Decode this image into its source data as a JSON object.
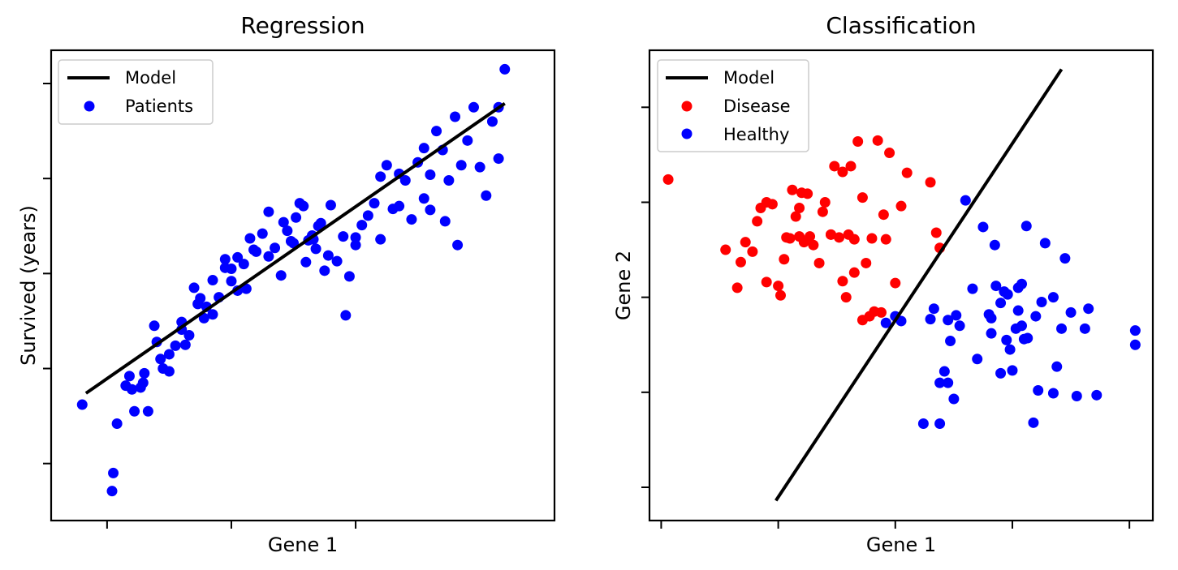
{
  "chart_data": [
    {
      "type": "scatter",
      "title": "Regression",
      "xlabel": "Gene 1",
      "ylabel": "Survived (years)",
      "xlim": [
        -0.45,
        3.6
      ],
      "ylim": [
        -1.6,
        3.35
      ],
      "xticks": [
        0,
        1,
        2
      ],
      "yticks": [
        -1,
        0,
        1,
        2,
        3
      ],
      "tick_labels_shown": false,
      "grid": false,
      "legend": "upper-left",
      "series": [
        {
          "name": "Model",
          "kind": "line",
          "color": "#000000",
          "x": [
            -0.17,
            3.2
          ],
          "y": [
            -0.26,
            2.79
          ]
        },
        {
          "name": "Patients",
          "kind": "scatter",
          "color": "#0000ff",
          "x": [
            -0.2,
            0.04,
            0.08,
            0.05,
            0.18,
            0.22,
            0.27,
            0.29,
            0.33,
            0.38,
            0.43,
            0.45,
            0.5,
            0.55,
            0.6,
            0.63,
            0.7,
            0.73,
            0.78,
            0.8,
            0.85,
            0.9,
            0.95,
            1.0,
            1.05,
            1.1,
            1.12,
            1.18,
            1.2,
            1.25,
            1.3,
            1.35,
            1.4,
            1.45,
            1.5,
            1.52,
            1.55,
            1.6,
            1.62,
            1.65,
            1.68,
            1.7,
            1.72,
            1.75,
            1.78,
            1.8,
            1.85,
            1.9,
            1.95,
            2.0,
            2.05,
            2.1,
            2.15,
            2.2,
            2.25,
            2.3,
            2.35,
            2.4,
            2.45,
            2.5,
            2.55,
            2.6,
            2.65,
            2.7,
            2.75,
            2.8,
            2.85,
            2.9,
            2.95,
            3.0,
            3.05,
            3.1,
            3.15,
            3.2,
            1.0,
            0.95,
            1.05,
            1.15,
            1.3,
            1.42,
            1.48,
            1.58,
            1.66,
            0.6,
            0.75,
            0.85,
            0.4,
            0.3,
            0.2,
            0.15,
            0.5,
            0.66,
            1.92,
            2.0,
            2.2,
            2.35,
            2.55,
            2.6,
            2.72,
            2.82,
            3.15
          ],
          "y": [
            -0.38,
            -1.29,
            -0.58,
            -1.1,
            -0.08,
            -0.45,
            -0.2,
            -0.15,
            -0.45,
            0.45,
            0.1,
            0.0,
            -0.03,
            0.24,
            0.41,
            0.25,
            0.85,
            0.68,
            0.53,
            0.65,
            0.93,
            0.75,
            1.15,
            1.05,
            0.82,
            1.1,
            0.84,
            1.25,
            1.23,
            1.42,
            1.18,
            1.27,
            0.98,
            1.45,
            1.32,
            1.59,
            1.74,
            1.12,
            1.35,
            1.4,
            1.26,
            1.5,
            1.53,
            1.03,
            1.19,
            1.72,
            1.13,
            1.39,
            0.97,
            1.3,
            1.51,
            1.61,
            1.74,
            2.02,
            2.14,
            1.68,
            2.05,
            1.98,
            1.57,
            2.17,
            2.32,
            1.67,
            2.5,
            2.3,
            1.98,
            2.65,
            2.14,
            2.4,
            2.75,
            2.12,
            1.82,
            2.6,
            2.75,
            3.15,
            0.92,
            1.06,
            1.17,
            1.37,
            1.65,
            1.54,
            1.34,
            1.71,
            1.36,
            0.49,
            0.74,
            0.57,
            0.28,
            -0.05,
            -0.22,
            -0.18,
            0.15,
            0.35,
            0.56,
            1.38,
            1.36,
            1.71,
            1.79,
            2.04,
            1.55,
            1.3,
            2.21
          ]
        }
      ]
    },
    {
      "type": "scatter",
      "title": "Classification",
      "xlabel": "Gene 1",
      "ylabel": "Gene 2",
      "xlim": [
        -0.1,
        4.2
      ],
      "ylim": [
        -2.35,
        2.6
      ],
      "xticks": [
        0,
        1,
        2,
        3,
        4
      ],
      "yticks": [
        -2,
        -1,
        0,
        1,
        2
      ],
      "tick_labels_shown": false,
      "grid": false,
      "legend": "upper-left",
      "series": [
        {
          "name": "Model",
          "kind": "line",
          "color": "#000000",
          "x": [
            0.98,
            3.42
          ],
          "y": [
            -2.14,
            2.4
          ]
        },
        {
          "name": "Disease",
          "kind": "scatter",
          "color": "#ff0000",
          "x": [
            0.06,
            0.55,
            0.68,
            0.72,
            0.85,
            0.9,
            0.95,
            1.0,
            1.05,
            1.07,
            1.1,
            1.12,
            1.15,
            1.18,
            1.2,
            1.25,
            1.27,
            1.3,
            1.35,
            1.4,
            1.45,
            1.48,
            1.52,
            1.55,
            1.58,
            1.6,
            1.62,
            1.65,
            1.68,
            1.72,
            1.75,
            1.8,
            1.85,
            1.9,
            1.95,
            2.0,
            2.05,
            2.1,
            2.3,
            2.35,
            2.38,
            0.65,
            0.78,
            0.9,
            1.02,
            1.18,
            1.22,
            1.38,
            1.45,
            1.55,
            1.65,
            1.72,
            1.78,
            1.82,
            1.88,
            1.92,
            0.82
          ],
          "y": [
            1.24,
            0.5,
            0.37,
            0.58,
            0.94,
            1.0,
            0.98,
            0.12,
            0.4,
            0.63,
            0.62,
            1.13,
            0.85,
            0.64,
            1.1,
            1.09,
            0.64,
            0.55,
            0.36,
            1.0,
            0.66,
            1.38,
            0.63,
            0.17,
            0.0,
            0.66,
            1.38,
            0.61,
            1.64,
            1.05,
            0.36,
            0.62,
            1.65,
            0.87,
            1.52,
            0.15,
            0.96,
            1.31,
            1.21,
            0.68,
            0.52,
            0.1,
            0.48,
            0.16,
            0.02,
            0.94,
            0.58,
            0.9,
            0.66,
            1.32,
            0.26,
            -0.24,
            -0.2,
            -0.15,
            -0.16,
            0.61,
            0.8
          ],
          "note_color_variants": "#ff0000"
        },
        {
          "name": "Healthy",
          "kind": "scatter",
          "color": "#0000ff",
          "x": [
            1.92,
            2.0,
            2.05,
            2.24,
            2.3,
            2.33,
            2.38,
            2.42,
            2.45,
            2.47,
            2.5,
            2.52,
            2.6,
            2.7,
            2.75,
            2.8,
            2.82,
            2.86,
            2.9,
            2.93,
            2.96,
            3.0,
            3.03,
            3.05,
            3.08,
            3.1,
            3.13,
            3.18,
            3.22,
            3.28,
            3.35,
            3.38,
            3.45,
            3.5,
            3.55,
            3.62,
            3.65,
            3.72,
            4.05,
            4.05,
            3.35,
            3.25,
            3.08,
            2.95,
            2.82,
            2.66,
            2.55,
            2.45,
            2.38,
            3.05,
            2.98,
            2.9,
            2.85,
            3.12,
            3.2,
            3.42
          ],
          "y": [
            -0.27,
            -0.2,
            -0.25,
            -1.33,
            -0.23,
            -0.12,
            -0.9,
            -0.78,
            -0.24,
            -0.46,
            -1.07,
            -0.19,
            1.02,
            -0.65,
            0.74,
            -0.18,
            -0.22,
            0.12,
            -0.06,
            0.06,
            0.03,
            -0.77,
            -0.33,
            -0.14,
            -0.3,
            -0.44,
            -0.43,
            -1.32,
            -0.98,
            0.57,
            -1.01,
            -0.73,
            0.41,
            -0.16,
            -1.04,
            -0.33,
            -0.12,
            -1.03,
            -0.35,
            -0.5,
            0.0,
            -0.05,
            0.14,
            -0.45,
            -0.38,
            0.09,
            -0.3,
            -0.9,
            -1.33,
            0.1,
            -0.55,
            -0.8,
            0.55,
            0.75,
            -0.2,
            -0.33
          ]
        }
      ]
    }
  ]
}
